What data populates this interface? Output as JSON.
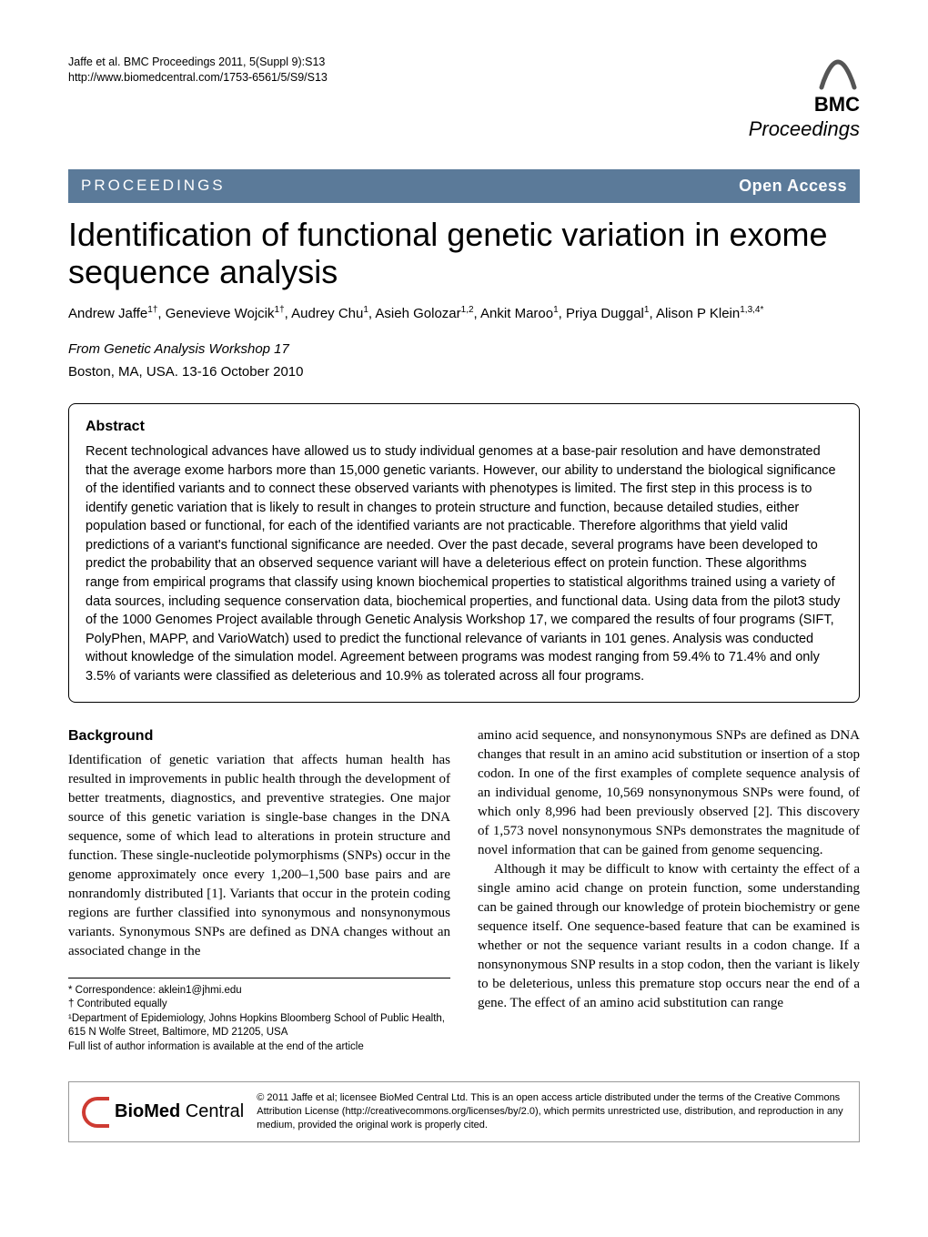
{
  "header": {
    "citation_line1": "Jaffe et al. BMC Proceedings 2011, 5(Suppl 9):S13",
    "citation_line2": "http://www.biomedcentral.com/1753-6561/5/S9/S13",
    "logo_top": "BMC",
    "logo_bottom": "Proceedings"
  },
  "banner": {
    "left": "PROCEEDINGS",
    "right": "Open Access"
  },
  "title": "Identification of functional genetic variation in exome sequence analysis",
  "authors_html": "Andrew Jaffe<sup>1†</sup>, Genevieve Wojcik<sup>1†</sup>, Audrey Chu<sup>1</sup>, Asieh Golozar<sup>1,2</sup>, Ankit Maroo<sup>1</sup>, Priya Duggal<sup>1</sup>, Alison P Klein<sup>1,3,4*</sup>",
  "conference": {
    "from": "From Genetic Analysis Workshop 17",
    "loc": "Boston, MA, USA. 13-16 October 2010"
  },
  "abstract": {
    "heading": "Abstract",
    "text": "Recent technological advances have allowed us to study individual genomes at a base-pair resolution and have demonstrated that the average exome harbors more than 15,000 genetic variants. However, our ability to understand the biological significance of the identified variants and to connect these observed variants with phenotypes is limited. The first step in this process is to identify genetic variation that is likely to result in changes to protein structure and function, because detailed studies, either population based or functional, for each of the identified variants are not practicable. Therefore algorithms that yield valid predictions of a variant's functional significance are needed. Over the past decade, several programs have been developed to predict the probability that an observed sequence variant will have a deleterious effect on protein function. These algorithms range from empirical programs that classify using known biochemical properties to statistical algorithms trained using a variety of data sources, including sequence conservation data, biochemical properties, and functional data. Using data from the pilot3 study of the 1000 Genomes Project available through Genetic Analysis Workshop 17, we compared the results of four programs (SIFT, PolyPhen, MAPP, and VarioWatch) used to predict the functional relevance of variants in 101 genes. Analysis was conducted without knowledge of the simulation model. Agreement between programs was modest ranging from 59.4% to 71.4% and only 3.5% of variants were classified as deleterious and 10.9% as tolerated across all four programs."
  },
  "body": {
    "heading": "Background",
    "p1": "Identification of genetic variation that affects human health has resulted in improvements in public health through the development of better treatments, diagnostics, and preventive strategies. One major source of this genetic variation is single-base changes in the DNA sequence, some of which lead to alterations in protein structure and function. These single-nucleotide polymorphisms (SNPs) occur in the genome approximately once every 1,200–1,500 base pairs and are nonrandomly distributed [1]. Variants that occur in the protein coding regions are further classified into synonymous and nonsynonymous variants. Synonymous SNPs are defined as DNA changes without an associated change in the",
    "p2": "amino acid sequence, and nonsynonymous SNPs are defined as DNA changes that result in an amino acid substitution or insertion of a stop codon. In one of the first examples of complete sequence analysis of an individual genome, 10,569 nonsynonymous SNPs were found, of which only 8,996 had been previously observed [2]. This discovery of 1,573 novel nonsynonymous SNPs demonstrates the magnitude of novel information that can be gained from genome sequencing.",
    "p3": "Although it may be difficult to know with certainty the effect of a single amino acid change on protein function, some understanding can be gained through our knowledge of protein biochemistry or gene sequence itself. One sequence-based feature that can be examined is whether or not the sequence variant results in a codon change. If a nonsynonymous SNP results in a stop codon, then the variant is likely to be deleterious, unless this premature stop occurs near the end of a gene. The effect of an amino acid substitution can range"
  },
  "footnotes": {
    "l1": "* Correspondence: aklein1@jhmi.edu",
    "l2": "† Contributed equally",
    "l3": "¹Department of Epidemiology, Johns Hopkins Bloomberg School of Public Health, 615 N Wolfe Street, Baltimore, MD 21205, USA",
    "l4": "Full list of author information is available at the end of the article"
  },
  "footer": {
    "brand1": "BioMed",
    "brand2": " Central",
    "license": "© 2011 Jaffe et al; licensee BioMed Central Ltd. This is an open access article distributed under the terms of the Creative Commons Attribution License (http://creativecommons.org/licenses/by/2.0), which permits unrestricted use, distribution, and reproduction in any medium, provided the original work is properly cited."
  },
  "colors": {
    "banner_bg": "#5b7a99",
    "logo_accent": "#ce3b32"
  }
}
